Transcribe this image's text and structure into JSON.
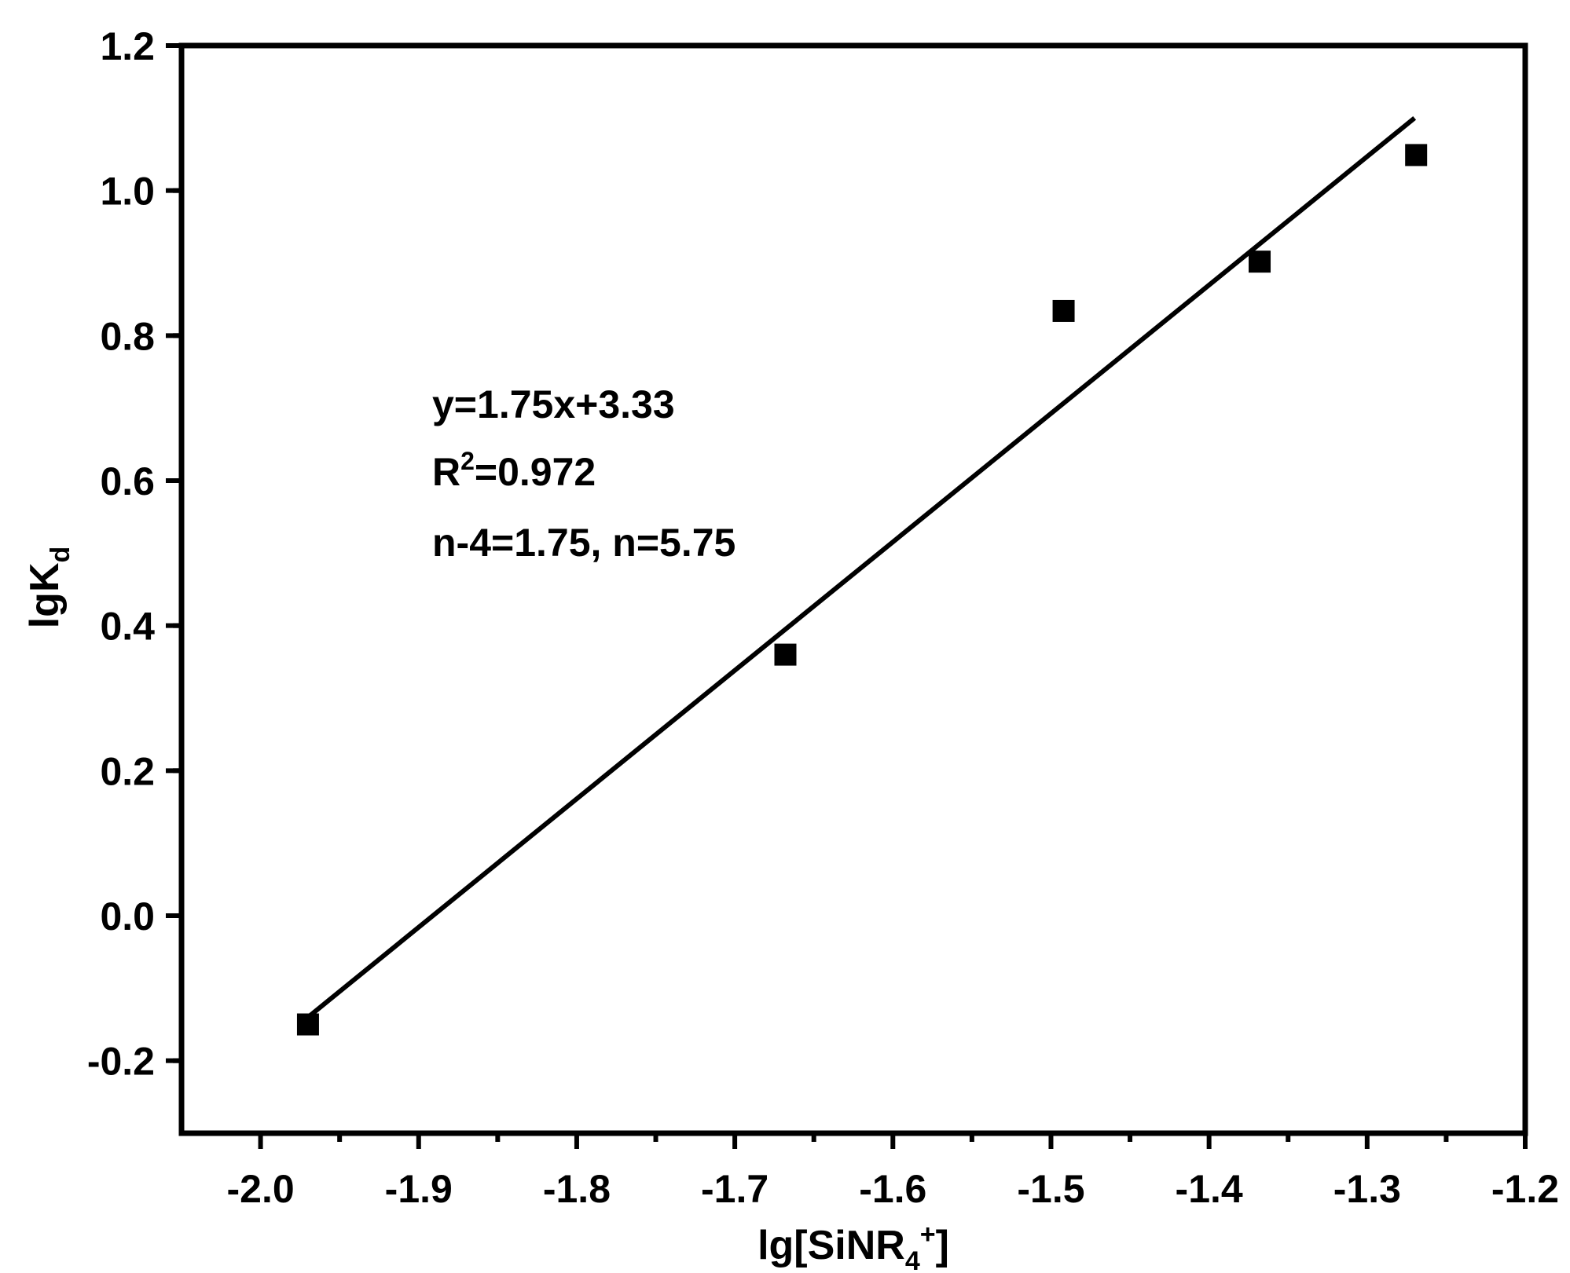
{
  "chart_data": {
    "type": "scatter",
    "xlabel": {
      "main": "lg[SiNR",
      "sub": "4",
      "sup": "+",
      "close": "]"
    },
    "ylabel": {
      "main": "lgK",
      "sub": "d"
    },
    "xlim": [
      -2.05,
      -1.2
    ],
    "ylim": [
      -0.3,
      1.2
    ],
    "x_ticks": [
      -2.0,
      -1.9,
      -1.8,
      -1.7,
      -1.6,
      -1.5,
      -1.4,
      -1.3,
      -1.2
    ],
    "x_tick_labels": [
      "-2.0",
      "-1.9",
      "-1.8",
      "-1.7",
      "-1.6",
      "-1.5",
      "-1.4",
      "-1.3",
      "-1.2"
    ],
    "y_ticks": [
      -0.2,
      0.0,
      0.2,
      0.4,
      0.6,
      0.8,
      1.0,
      1.2
    ],
    "y_tick_labels": [
      "-0.2",
      "0.0",
      "0.2",
      "0.4",
      "0.6",
      "0.8",
      "1.0",
      "1.2"
    ],
    "grid": false,
    "series": [
      {
        "marker": "square",
        "color": "#000000",
        "points": [
          {
            "x": -1.97,
            "y": -0.15
          },
          {
            "x": -1.668,
            "y": 0.36
          },
          {
            "x": -1.492,
            "y": 0.834
          },
          {
            "x": -1.368,
            "y": 0.902
          },
          {
            "x": -1.269,
            "y": 1.049
          }
        ]
      }
    ],
    "fit_line": {
      "color": "#000000",
      "x_start": -1.97,
      "x_end": -1.27,
      "y_start": -0.14,
      "y_end": 1.1
    },
    "annotations": {
      "equation": "y=1.75x+3.33",
      "r2_prefix": "R",
      "r2_sup": "2",
      "r2_value": "=0.972",
      "n_text": "n-4=1.75, n=5.75"
    }
  }
}
